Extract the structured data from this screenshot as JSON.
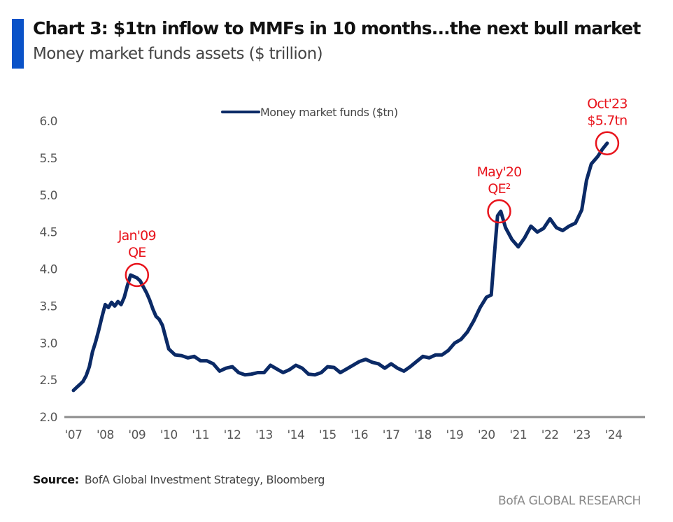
{
  "header": {
    "title": "Chart 3: $1tn inflow to MMFs in 10 months...the next bull market",
    "subtitle": "Money market funds assets ($ trillion)"
  },
  "footer": {
    "source_label": "Source:",
    "source_text": "BofA Global Investment Strategy, Bloomberg",
    "brand": "BofA GLOBAL RESEARCH"
  },
  "colors": {
    "accent": "#0a52c8",
    "series": "#0b2a66",
    "annotation": "#e8141c",
    "axis": "#8c8c8c"
  },
  "chart_data": {
    "type": "line",
    "title": "Chart 3: $1tn inflow to MMFs in 10 months...the next bull market",
    "subtitle": "Money market funds assets ($ trillion)",
    "xlabel": "",
    "ylabel": "",
    "xlim": [
      2007.0,
      2024.0
    ],
    "ylim": [
      2.0,
      6.0
    ],
    "yticks": [
      2.0,
      2.5,
      3.0,
      3.5,
      4.0,
      4.5,
      5.0,
      5.5,
      6.0
    ],
    "ytick_labels": [
      "2.0",
      "2.5",
      "3.0",
      "3.5",
      "4.0",
      "4.5",
      "5.0",
      "5.5",
      "6.0"
    ],
    "xticks": [
      2007,
      2008,
      2009,
      2010,
      2011,
      2012,
      2013,
      2014,
      2015,
      2016,
      2017,
      2018,
      2019,
      2020,
      2021,
      2022,
      2023,
      2024
    ],
    "xtick_labels": [
      "'07",
      "'08",
      "'09",
      "'10",
      "'11",
      "'12",
      "'13",
      "'14",
      "'15",
      "'16",
      "'17",
      "'18",
      "'19",
      "'20",
      "'21",
      "'22",
      "'23",
      "'24"
    ],
    "grid": false,
    "legend": {
      "position": "top-center",
      "entries": [
        "Money market funds ($tn)"
      ]
    },
    "series": [
      {
        "name": "Money market funds ($tn)",
        "x": [
          2007.0,
          2007.1,
          2007.2,
          2007.3,
          2007.4,
          2007.5,
          2007.6,
          2007.7,
          2007.8,
          2007.9,
          2008.0,
          2008.1,
          2008.2,
          2008.3,
          2008.4,
          2008.5,
          2008.6,
          2008.7,
          2008.8,
          2008.9,
          2009.0,
          2009.1,
          2009.2,
          2009.3,
          2009.4,
          2009.5,
          2009.6,
          2009.7,
          2009.8,
          2009.9,
          2010.0,
          2010.2,
          2010.4,
          2010.6,
          2010.8,
          2011.0,
          2011.2,
          2011.4,
          2011.6,
          2011.8,
          2012.0,
          2012.2,
          2012.4,
          2012.6,
          2012.8,
          2013.0,
          2013.2,
          2013.4,
          2013.6,
          2013.8,
          2014.0,
          2014.2,
          2014.4,
          2014.6,
          2014.8,
          2015.0,
          2015.2,
          2015.4,
          2015.6,
          2015.8,
          2016.0,
          2016.2,
          2016.4,
          2016.6,
          2016.8,
          2017.0,
          2017.2,
          2017.4,
          2017.6,
          2017.8,
          2018.0,
          2018.2,
          2018.4,
          2018.6,
          2018.8,
          2019.0,
          2019.2,
          2019.4,
          2019.6,
          2019.8,
          2020.0,
          2020.15,
          2020.25,
          2020.35,
          2020.45,
          2020.6,
          2020.8,
          2021.0,
          2021.2,
          2021.4,
          2021.6,
          2021.8,
          2022.0,
          2022.2,
          2022.4,
          2022.6,
          2022.8,
          2023.0,
          2023.15,
          2023.3,
          2023.5,
          2023.65,
          2023.8
        ],
        "y": [
          2.36,
          2.4,
          2.44,
          2.48,
          2.56,
          2.68,
          2.88,
          3.02,
          3.18,
          3.36,
          3.52,
          3.48,
          3.55,
          3.5,
          3.56,
          3.52,
          3.62,
          3.78,
          3.92,
          3.9,
          3.88,
          3.84,
          3.76,
          3.68,
          3.58,
          3.46,
          3.36,
          3.32,
          3.24,
          3.08,
          2.92,
          2.84,
          2.83,
          2.8,
          2.82,
          2.76,
          2.76,
          2.72,
          2.62,
          2.66,
          2.68,
          2.6,
          2.57,
          2.58,
          2.6,
          2.6,
          2.7,
          2.65,
          2.6,
          2.64,
          2.7,
          2.66,
          2.58,
          2.57,
          2.6,
          2.68,
          2.67,
          2.6,
          2.65,
          2.7,
          2.75,
          2.78,
          2.74,
          2.72,
          2.66,
          2.72,
          2.66,
          2.62,
          2.68,
          2.75,
          2.82,
          2.8,
          2.84,
          2.84,
          2.9,
          3.0,
          3.05,
          3.15,
          3.3,
          3.48,
          3.62,
          3.65,
          4.2,
          4.72,
          4.78,
          4.56,
          4.4,
          4.3,
          4.42,
          4.58,
          4.5,
          4.55,
          4.68,
          4.56,
          4.52,
          4.58,
          4.62,
          4.8,
          5.2,
          5.42,
          5.52,
          5.62,
          5.7
        ]
      }
    ],
    "annotations": [
      {
        "label_lines": [
          "Jan'09",
          "QE"
        ],
        "x": 2009.0,
        "y": 3.92
      },
      {
        "label_lines": [
          "May'20",
          "QE²"
        ],
        "x": 2020.4,
        "y": 4.78
      },
      {
        "label_lines": [
          "Oct'23",
          "$5.7tn"
        ],
        "x": 2023.8,
        "y": 5.7
      }
    ]
  }
}
